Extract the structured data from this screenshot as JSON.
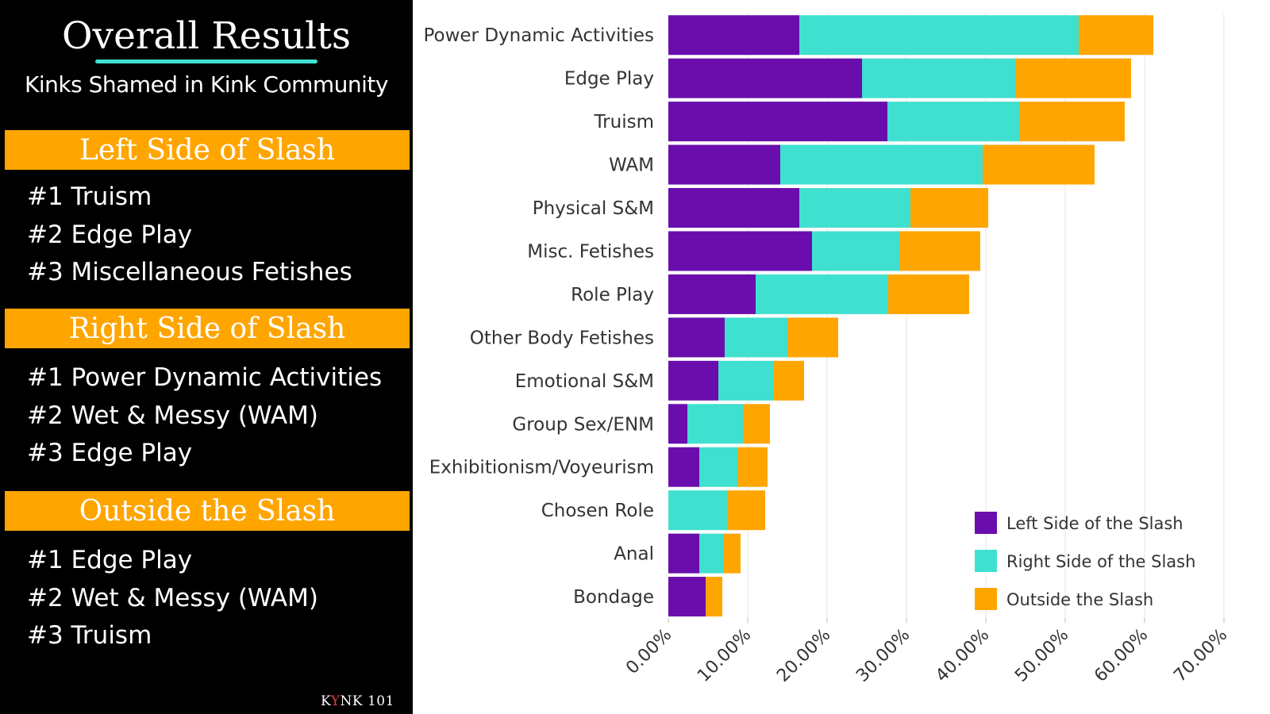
{
  "panel": {
    "title": "Overall Results",
    "subtitle": "Kinks Shamed in Kink Community",
    "sections": [
      {
        "header": "Left Side of Slash",
        "items": [
          "#1 Truism",
          "#2 Edge Play",
          "#3 Miscellaneous Fetishes"
        ]
      },
      {
        "header": "Right Side of Slash",
        "items": [
          "#1 Power Dynamic Activities",
          "#2 Wet & Messy (WAM)",
          "#3 Edge Play"
        ]
      },
      {
        "header": "Outside the Slash",
        "items": [
          "#1 Edge Play",
          "#2 Wet & Messy (WAM)",
          "#3 Truism"
        ]
      }
    ],
    "footer_brand_pre": "K",
    "footer_brand_accent": "Y",
    "footer_brand_post": "NK 101"
  },
  "colors": {
    "background_panel": "#000000",
    "accent_orange": "#ffa500",
    "accent_teal": "#40e0d0",
    "series_left": "#6a0dad",
    "series_right": "#40e0d0",
    "series_outside": "#ffa500"
  },
  "chart_data": {
    "type": "bar",
    "orientation": "horizontal",
    "stacked": true,
    "categories": [
      "Power Dynamic Activities",
      "Edge Play",
      "Truism",
      "WAM",
      "Physical S&M",
      "Misc. Fetishes",
      "Role Play",
      "Other Body Fetishes",
      "Emotional S&M",
      "Group Sex/ENM",
      "Exhibitionism/Voyeurism",
      "Chosen Role",
      "Anal",
      "Bondage"
    ],
    "series": [
      {
        "name": "Left Side of the Slash",
        "color": "#6a0dad",
        "values": [
          16.5,
          24.4,
          27.6,
          14.1,
          16.5,
          18.1,
          11.0,
          7.1,
          6.3,
          2.4,
          3.9,
          0.0,
          3.9,
          4.7
        ]
      },
      {
        "name": "Right Side of the Slash",
        "color": "#40e0d0",
        "values": [
          35.2,
          19.3,
          16.7,
          25.5,
          14.0,
          11.0,
          16.7,
          7.9,
          7.0,
          7.0,
          4.8,
          7.5,
          3.1,
          0.0
        ]
      },
      {
        "name": "Outside the Slash",
        "color": "#ffa500",
        "values": [
          9.4,
          14.6,
          13.2,
          14.1,
          9.8,
          10.2,
          10.2,
          6.4,
          3.8,
          3.4,
          3.8,
          4.7,
          2.1,
          2.1
        ]
      }
    ],
    "xlim": [
      0,
      70
    ],
    "xticks": [
      "0.00%",
      "10.00%",
      "20.00%",
      "30.00%",
      "40.00%",
      "50.00%",
      "60.00%",
      "70.00%"
    ],
    "grid": true,
    "legend_position": "bottom-right",
    "title": "",
    "xlabel": "",
    "ylabel": ""
  }
}
